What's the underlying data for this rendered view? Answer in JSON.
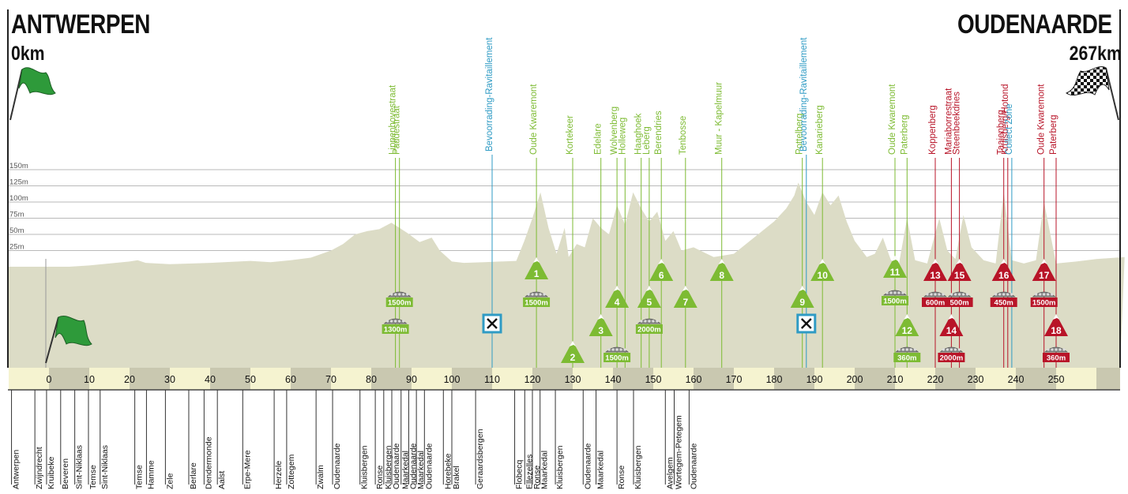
{
  "header": {
    "start_city": "ANTWERPEN",
    "start_km": "0km",
    "finish_city": "OUDENAARDE",
    "finish_km": "267km"
  },
  "altitude_labels": [
    "150m",
    "125m",
    "100m",
    "75m",
    "50m",
    "25m"
  ],
  "altitude_levels_m": [
    150,
    125,
    100,
    75,
    50,
    25
  ],
  "axis": {
    "ticks": [
      0,
      10,
      20,
      30,
      40,
      50,
      60,
      70,
      80,
      90,
      100,
      110,
      120,
      130,
      140,
      150,
      160,
      170,
      180,
      190,
      200,
      210,
      220,
      230,
      240,
      250
    ]
  },
  "colors": {
    "terrain": "#dcdcc6",
    "climb": "#7dbb33",
    "hard_climb": "#b81428",
    "service": "#2f9bc4",
    "band_light": "#f5f3d0",
    "band_dark": "#c9c8b0"
  },
  "profile_km_elev": [
    [
      -11,
      0
    ],
    [
      0,
      0
    ],
    [
      5,
      0
    ],
    [
      10,
      2
    ],
    [
      15,
      5
    ],
    [
      20,
      8
    ],
    [
      22,
      10
    ],
    [
      24,
      6
    ],
    [
      30,
      4
    ],
    [
      40,
      6
    ],
    [
      50,
      9
    ],
    [
      55,
      7
    ],
    [
      60,
      10
    ],
    [
      65,
      14
    ],
    [
      70,
      25
    ],
    [
      73,
      35
    ],
    [
      76,
      50
    ],
    [
      79,
      55
    ],
    [
      82,
      58
    ],
    [
      85,
      68
    ],
    [
      87,
      60
    ],
    [
      89,
      52
    ],
    [
      92,
      38
    ],
    [
      95,
      45
    ],
    [
      97,
      25
    ],
    [
      100,
      8
    ],
    [
      103,
      6
    ],
    [
      108,
      7
    ],
    [
      112,
      8
    ],
    [
      116,
      9
    ],
    [
      118,
      40
    ],
    [
      120,
      75
    ],
    [
      122,
      115
    ],
    [
      124,
      60
    ],
    [
      126,
      20
    ],
    [
      128,
      60
    ],
    [
      129,
      15
    ],
    [
      131,
      35
    ],
    [
      133,
      30
    ],
    [
      135,
      75
    ],
    [
      137,
      60
    ],
    [
      139,
      50
    ],
    [
      141,
      95
    ],
    [
      143,
      65
    ],
    [
      145,
      115
    ],
    [
      147,
      90
    ],
    [
      149,
      70
    ],
    [
      151,
      85
    ],
    [
      153,
      40
    ],
    [
      155,
      55
    ],
    [
      157,
      25
    ],
    [
      160,
      30
    ],
    [
      165,
      15
    ],
    [
      170,
      20
    ],
    [
      175,
      45
    ],
    [
      180,
      70
    ],
    [
      183,
      90
    ],
    [
      185,
      110
    ],
    [
      186,
      130
    ],
    [
      188,
      100
    ],
    [
      190,
      80
    ],
    [
      192,
      115
    ],
    [
      194,
      95
    ],
    [
      196,
      110
    ],
    [
      198,
      70
    ],
    [
      200,
      40
    ],
    [
      203,
      15
    ],
    [
      205,
      20
    ],
    [
      207,
      45
    ],
    [
      209,
      10
    ],
    [
      211,
      5
    ],
    [
      213,
      75
    ],
    [
      215,
      10
    ],
    [
      218,
      5
    ],
    [
      221,
      75
    ],
    [
      223,
      25
    ],
    [
      225,
      12
    ],
    [
      227,
      80
    ],
    [
      229,
      30
    ],
    [
      232,
      10
    ],
    [
      235,
      5
    ],
    [
      237,
      115
    ],
    [
      239,
      10
    ],
    [
      242,
      5
    ],
    [
      245,
      10
    ],
    [
      247,
      100
    ],
    [
      250,
      5
    ],
    [
      255,
      8
    ],
    [
      260,
      12
    ],
    [
      267,
      15
    ]
  ],
  "climbs": [
    {
      "num": "1",
      "name": "Oude Kwaremont",
      "km": 121,
      "color": "green",
      "paved": "1500m"
    },
    {
      "num": "2",
      "name": "Kortekeer",
      "km": 130,
      "color": "green",
      "paved": ""
    },
    {
      "num": "3",
      "name": "Edelare",
      "km": 137,
      "color": "green",
      "paved": ""
    },
    {
      "num": "4",
      "name": "Wolvenberg",
      "km": 141,
      "color": "green",
      "paved": "1500m"
    },
    {
      "num": "5",
      "name": "Leberg",
      "km": 149,
      "color": "green",
      "paved": "2000m"
    },
    {
      "num": "6",
      "name": "Berendries",
      "km": 152,
      "color": "green",
      "paved": ""
    },
    {
      "num": "7",
      "name": "Tenbosse",
      "km": 158,
      "color": "green",
      "paved": ""
    },
    {
      "num": "8",
      "name": "Muur - Kapelmuur",
      "km": 167,
      "color": "green",
      "paved": ""
    },
    {
      "num": "9",
      "name": "Pottelberg",
      "km": 187,
      "color": "green",
      "paved": ""
    },
    {
      "num": "10",
      "name": "Kanarieberg",
      "km": 192,
      "color": "green",
      "paved": ""
    },
    {
      "num": "11",
      "name": "Oude Kwaremont",
      "km": 210,
      "color": "green",
      "paved": "1500m"
    },
    {
      "num": "12",
      "name": "Paterberg",
      "km": 213,
      "color": "green",
      "paved": "360m"
    },
    {
      "num": "13",
      "name": "Koppenberg",
      "km": 220,
      "color": "red",
      "paved": "600m"
    },
    {
      "num": "14",
      "name": "Mariaborrestraat",
      "km": 224,
      "color": "red",
      "paved": "2000m"
    },
    {
      "num": "15",
      "name": "Steenbeekdries",
      "km": 226,
      "color": "red",
      "paved": "500m"
    },
    {
      "num": "16",
      "name": "Taaienberg",
      "km": 237,
      "color": "red",
      "paved": "450m"
    },
    {
      "num": "17",
      "name": "Oude Kwaremont",
      "km": 247,
      "color": "red",
      "paved": "1500m"
    },
    {
      "num": "18",
      "name": "Paterberg",
      "km": 250,
      "color": "red",
      "paved": "360m"
    }
  ],
  "cobbles": [
    {
      "name": "Lippenhovestraat",
      "km": 86,
      "paved": "1300m"
    },
    {
      "name": "Paddestraat",
      "km": 87,
      "paved": "1500m"
    }
  ],
  "feed_zones": [
    {
      "name": "Bevoorrading-Ravitaillement",
      "km": 110
    },
    {
      "name": "Bevoorrading-Ravitaillement",
      "km": 188
    }
  ],
  "service_points": [
    {
      "name": "Collect Zone",
      "km": 239
    }
  ],
  "extra_top_labels": [
    {
      "name": "Holleweg",
      "km": 143,
      "color": "green"
    },
    {
      "name": "Haaghoek",
      "km": 147,
      "color": "green"
    },
    {
      "name": "Kruisberg/Hotond",
      "km": 238,
      "color": "red"
    }
  ],
  "places": [
    {
      "name": "Antwerpen",
      "km": -9.3
    },
    {
      "name": "Zwijndrecht",
      "km": -3.5
    },
    {
      "name": "Kruibeke",
      "km": -0.6
    },
    {
      "name": "Beveren",
      "km": 2.9
    },
    {
      "name": "Sint-Niklaas",
      "km": 6.4
    },
    {
      "name": "Temse",
      "km": 9.8
    },
    {
      "name": "Sint-Niklaas",
      "km": 12.7
    },
    {
      "name": "Temse",
      "km": 21.3
    },
    {
      "name": "Hamme",
      "km": 24.2
    },
    {
      "name": "Zele",
      "km": 28.9
    },
    {
      "name": "Berlare",
      "km": 34.7
    },
    {
      "name": "Dendermonde",
      "km": 38.5
    },
    {
      "name": "Aalst",
      "km": 41.8
    },
    {
      "name": "Erpe-Mere",
      "km": 48.1
    },
    {
      "name": "Herzele",
      "km": 55.9
    },
    {
      "name": "Zottegem",
      "km": 59.0
    },
    {
      "name": "Zwalm",
      "km": 66.3
    },
    {
      "name": "Oudenaarde",
      "km": 70.4
    },
    {
      "name": "Kluisbergen",
      "km": 77.2
    },
    {
      "name": "Ronse",
      "km": 81.0
    },
    {
      "name": "Kluisbergen",
      "km": 83.1
    },
    {
      "name": "Oudenaarde",
      "km": 85.1
    },
    {
      "name": "Maarkedal",
      "km": 87.4
    },
    {
      "name": "Oudenaarde",
      "km": 89.3
    },
    {
      "name": "Maarkedal",
      "km": 91.2
    },
    {
      "name": "Oudenaarde",
      "km": 93.2
    },
    {
      "name": "Horebeke",
      "km": 97.9
    },
    {
      "name": "Brakel",
      "km": 100.0
    },
    {
      "name": "Geraardsbergen",
      "km": 105.9
    },
    {
      "name": "Flobecq",
      "km": 115.6
    },
    {
      "name": "Ellezelles",
      "km": 118.1
    },
    {
      "name": "Ronse",
      "km": 120.0
    },
    {
      "name": "Maarkedal",
      "km": 121.9
    },
    {
      "name": "Kluisbergen",
      "km": 125.7
    },
    {
      "name": "Oudenaarde",
      "km": 132.6
    },
    {
      "name": "Maarkedal",
      "km": 135.8
    },
    {
      "name": "Ronse",
      "km": 141.0
    },
    {
      "name": "Kluisbergen",
      "km": 145.1
    },
    {
      "name": "Avelgem",
      "km": 153.0
    },
    {
      "name": "Wortegem-Petegem",
      "km": 155.2
    },
    {
      "name": "Oudenaarde",
      "km": 158.9
    }
  ]
}
